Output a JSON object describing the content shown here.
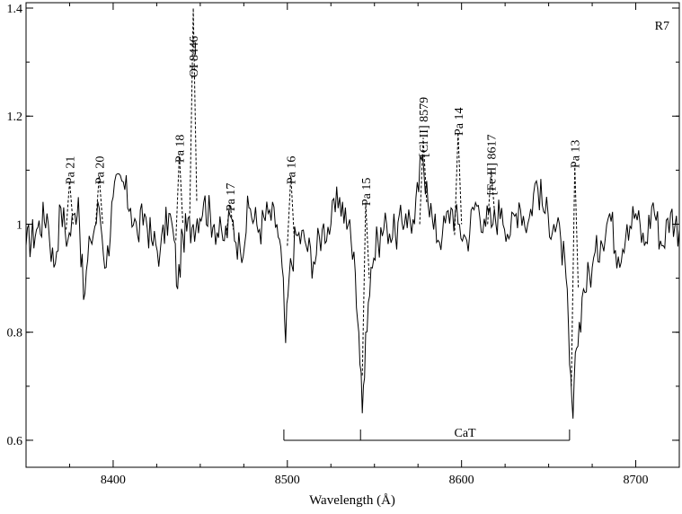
{
  "chart_data": {
    "type": "line",
    "title": "",
    "panel_label": "R7",
    "xlabel": "Wavelength  (Å)",
    "ylabel": "",
    "xlim": [
      8350,
      8725
    ],
    "ylim": [
      0.55,
      1.41
    ],
    "x_ticks": [
      8400,
      8500,
      8600,
      8700
    ],
    "x_tick_labels": [
      "8400",
      "8500",
      "8600",
      "8700"
    ],
    "y_ticks": [
      0.6,
      0.8,
      1.0,
      1.2,
      1.4
    ],
    "y_tick_labels": [
      "0.6",
      "0.8",
      "1",
      "1.2",
      "1.4"
    ],
    "grid": false,
    "legend": "none",
    "series": [
      {
        "style": "solid",
        "x": [
          8350,
          8356,
          8362,
          8366,
          8370,
          8374,
          8378,
          8380,
          8383,
          8387,
          8392,
          8396,
          8400,
          8405,
          8410,
          8414,
          8418,
          8422,
          8427,
          8432,
          8435,
          8437,
          8440,
          8446,
          8452,
          8458,
          8463,
          8468,
          8473,
          8478,
          8484,
          8489,
          8494,
          8497,
          8499,
          8501,
          8505,
          8510,
          8515,
          8520,
          8525,
          8530,
          8535,
          8539,
          8541,
          8543,
          8545,
          8548,
          8552,
          8557,
          8562,
          8568,
          8573,
          8577,
          8580,
          8584,
          8589,
          8594,
          8598,
          8603,
          8608,
          8613,
          8618,
          8623,
          8628,
          8633,
          8638,
          8643,
          8648,
          8653,
          8657,
          8660,
          8662,
          8664,
          8666,
          8670,
          8675,
          8680,
          8685,
          8690,
          8695,
          8700,
          8705,
          8710,
          8715,
          8720,
          8725
        ],
        "y": [
          0.96,
          0.99,
          1.02,
          0.92,
          1.03,
          0.97,
          1.02,
          1.05,
          0.86,
          0.97,
          1.03,
          0.92,
          1.05,
          1.08,
          1.03,
          0.98,
          1.02,
          0.97,
          0.95,
          1.02,
          0.97,
          0.88,
          0.98,
          1.0,
          1.04,
          1.0,
          0.97,
          1.01,
          0.95,
          1.03,
          0.99,
          1.02,
          1.0,
          0.92,
          0.78,
          0.9,
          0.98,
          0.97,
          0.93,
          0.99,
          1.0,
          1.05,
          1.0,
          0.91,
          0.8,
          0.65,
          0.8,
          0.92,
          0.97,
          1.0,
          0.98,
          1.02,
          1.0,
          1.12,
          1.08,
          0.99,
          0.98,
          1.03,
          1.0,
          0.97,
          1.04,
          1.01,
          1.0,
          1.03,
          0.98,
          1.04,
          1.0,
          1.08,
          1.02,
          1.0,
          0.97,
          0.9,
          0.74,
          0.64,
          0.77,
          0.88,
          0.92,
          0.97,
          1.02,
          0.94,
          1.0,
          1.02,
          0.96,
          1.04,
          0.96,
          1.02,
          0.99
        ]
      },
      {
        "style": "dashed",
        "segments": [
          {
            "x": [
              8373,
              8375,
              8377
            ],
            "y": [
              0.99,
              1.08,
              1.0
            ]
          },
          {
            "x": [
              8390,
              8392,
              8394
            ],
            "y": [
              1.0,
              1.09,
              1.0
            ]
          },
          {
            "x": [
              8436,
              8438,
              8440
            ],
            "y": [
              0.97,
              1.13,
              1.0
            ]
          },
          {
            "x": [
              8444,
              8446,
              8448
            ],
            "y": [
              1.02,
              1.4,
              1.04
            ]
          },
          {
            "x": [
              8465,
              8467,
              8469
            ],
            "y": [
              0.98,
              1.04,
              0.99
            ]
          },
          {
            "x": [
              8500,
              8502,
              8504
            ],
            "y": [
              0.96,
              1.09,
              0.97
            ]
          },
          {
            "x": [
              8543,
              8545,
              8547
            ],
            "y": [
              0.72,
              1.04,
              0.9
            ]
          },
          {
            "x": [
              8576,
              8578,
              8580
            ],
            "y": [
              1.0,
              1.16,
              1.04
            ]
          },
          {
            "x": [
              8596,
              8598,
              8600
            ],
            "y": [
              0.98,
              1.17,
              1.0
            ]
          },
          {
            "x": [
              8615,
              8617,
              8619
            ],
            "y": [
              1.0,
              1.1,
              1.02
            ]
          },
          {
            "x": [
              8663,
              8665,
              8667
            ],
            "y": [
              0.7,
              1.11,
              0.88
            ]
          }
        ]
      }
    ],
    "annotations": [
      {
        "text": "Pa 21",
        "x": 8375,
        "y": 1.1
      },
      {
        "text": "Pa 20",
        "x": 8392,
        "y": 1.1
      },
      {
        "text": "Pa 18",
        "x": 8438,
        "y": 1.14
      },
      {
        "text": "OI 8446",
        "x": 8446,
        "y": 1.31
      },
      {
        "text": "Pa 17",
        "x": 8467,
        "y": 1.05
      },
      {
        "text": "Pa 16",
        "x": 8502,
        "y": 1.1
      },
      {
        "text": "Pa 15",
        "x": 8545,
        "y": 1.06
      },
      {
        "text": "[Cl II] 8579",
        "x": 8578,
        "y": 1.18
      },
      {
        "text": "Pa 14",
        "x": 8598,
        "y": 1.19
      },
      {
        "text": "[Fe II] 8617",
        "x": 8617,
        "y": 1.11
      },
      {
        "text": "Pa 13",
        "x": 8665,
        "y": 1.13
      }
    ],
    "bracket": {
      "label": "CaT",
      "x": [
        8498,
        8542,
        8662
      ],
      "y": 0.6,
      "tick_height": 0.02
    }
  }
}
